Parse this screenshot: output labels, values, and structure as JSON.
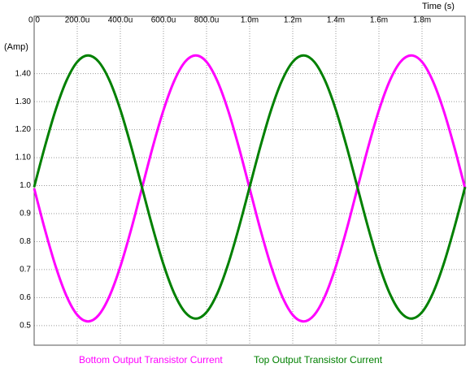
{
  "chart_data": {
    "type": "line",
    "x_label": "Time  (s)",
    "y_label": "(Amp)",
    "x": [
      0,
      5e-05,
      0.0001,
      0.00015,
      0.0002,
      0.00025,
      0.0003,
      0.00035,
      0.0004,
      0.00045,
      0.0005,
      0.00055,
      0.0006,
      0.00065,
      0.0007,
      0.00075,
      0.0008,
      0.00085,
      0.0009,
      0.00095,
      0.001,
      0.00105,
      0.0011,
      0.00115,
      0.0012,
      0.00125,
      0.0013,
      0.00135,
      0.0014,
      0.00145,
      0.0015,
      0.00155,
      0.0016,
      0.00165,
      0.0017,
      0.00175,
      0.0018,
      0.00185,
      0.0019,
      0.00195,
      0.002
    ],
    "series": [
      {
        "name": "Bottom Output Transistor Current",
        "color": "#ff00ff",
        "values": [
          0.99,
          0.843,
          0.711,
          0.606,
          0.538,
          0.515,
          0.538,
          0.606,
          0.711,
          0.843,
          0.99,
          1.137,
          1.269,
          1.374,
          1.442,
          1.465,
          1.442,
          1.374,
          1.269,
          1.137,
          0.99,
          0.843,
          0.711,
          0.606,
          0.538,
          0.515,
          0.538,
          0.606,
          0.711,
          0.843,
          0.99,
          1.137,
          1.269,
          1.374,
          1.442,
          1.465,
          1.442,
          1.374,
          1.269,
          1.137,
          0.99
        ]
      },
      {
        "name": "Top Output Transistor Current",
        "color": "#008000",
        "values": [
          0.995,
          1.14,
          1.271,
          1.375,
          1.442,
          1.465,
          1.442,
          1.375,
          1.271,
          1.14,
          0.995,
          0.85,
          0.719,
          0.615,
          0.548,
          0.525,
          0.548,
          0.615,
          0.719,
          0.85,
          0.995,
          1.14,
          1.271,
          1.375,
          1.442,
          1.465,
          1.442,
          1.375,
          1.271,
          1.14,
          0.995,
          0.85,
          0.719,
          0.615,
          0.548,
          0.525,
          0.548,
          0.615,
          0.719,
          0.85,
          0.995
        ]
      }
    ],
    "xlim": [
      0,
      0.002
    ],
    "xticks": [
      {
        "value": 0,
        "label": "0.0"
      },
      {
        "value": 0.0002,
        "label": "200.0u"
      },
      {
        "value": 0.0004,
        "label": "400.0u"
      },
      {
        "value": 0.0006,
        "label": "600.0u"
      },
      {
        "value": 0.0008,
        "label": "800.0u"
      },
      {
        "value": 0.001,
        "label": "1.0m"
      },
      {
        "value": 0.0012,
        "label": "1.2m"
      },
      {
        "value": 0.0014,
        "label": "1.4m"
      },
      {
        "value": 0.0016,
        "label": "1.6m"
      },
      {
        "value": 0.0018,
        "label": "1.8m"
      }
    ],
    "ylim": [
      0.43,
      1.605
    ],
    "yticks": [
      {
        "value": 1.4,
        "label": "1.40"
      },
      {
        "value": 1.3,
        "label": "1.30"
      },
      {
        "value": 1.2,
        "label": "1.20"
      },
      {
        "value": 1.1,
        "label": "1.10"
      },
      {
        "value": 1,
        "label": "1.0"
      },
      0.9,
      0.8,
      0.7,
      0.6,
      0.5
    ],
    "grid": true
  }
}
